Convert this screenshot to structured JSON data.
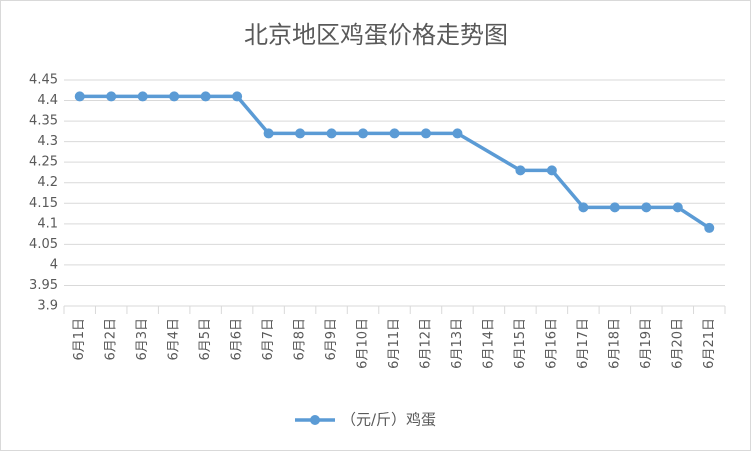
{
  "chart_data": {
    "type": "line",
    "title": "北京地区鸡蛋价格走势图",
    "categories": [
      "6月1日",
      "6月2日",
      "6月3日",
      "6月4日",
      "6月5日",
      "6月6日",
      "6月7日",
      "6月8日",
      "6月9日",
      "6月10日",
      "6月11日",
      "6月12日",
      "6月13日",
      "6月14日",
      "6月15日",
      "6月16日",
      "6月17日",
      "6月18日",
      "6月19日",
      "6月20日",
      "6月21日"
    ],
    "series": [
      {
        "name": "（元/斤）鸡蛋",
        "color": "#5b9bd5",
        "values": [
          4.41,
          4.41,
          4.41,
          4.41,
          4.41,
          4.41,
          4.32,
          4.32,
          4.32,
          4.32,
          4.32,
          4.32,
          4.32,
          null,
          4.23,
          4.23,
          4.14,
          4.14,
          4.14,
          4.14,
          4.09
        ]
      }
    ],
    "ylim": [
      3.9,
      4.45
    ],
    "yticks": [
      3.9,
      3.95,
      4,
      4.05,
      4.1,
      4.15,
      4.2,
      4.25,
      4.3,
      4.35,
      4.4,
      4.45
    ],
    "grid": true,
    "legend": "bottom",
    "connect_gaps": true
  }
}
